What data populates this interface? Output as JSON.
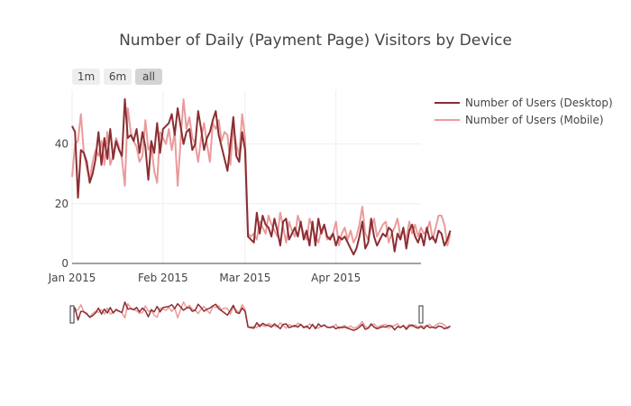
{
  "chart_data": {
    "type": "line",
    "title": "Number of Daily (Payment Page) Visitors by Device",
    "xlabel": "",
    "ylabel": "",
    "x_start": "2015-01-01",
    "x_end": "2015-04-30",
    "x_ticks": [
      {
        "date": "2015-01-01",
        "label": "Jan 2015"
      },
      {
        "date": "2015-02-01",
        "label": "Feb 2015"
      },
      {
        "date": "2015-03-01",
        "label": "Mar 2015"
      },
      {
        "date": "2015-04-01",
        "label": "Apr 2015"
      }
    ],
    "ylim": [
      0,
      58
    ],
    "y_ticks": [
      0,
      20,
      40
    ],
    "grid": true,
    "legend": "top-right",
    "range_buttons": [
      {
        "label": "1m",
        "active": false
      },
      {
        "label": "6m",
        "active": false
      },
      {
        "label": "all",
        "active": true
      }
    ],
    "range_slider": true,
    "series": [
      {
        "name": "Number of Users (Desktop)",
        "color": "#8b2e32",
        "values": [
          46,
          44,
          22,
          38,
          37,
          34,
          27,
          30,
          35,
          44,
          33,
          42,
          35,
          45,
          35,
          41,
          38,
          36,
          55,
          42,
          43,
          41,
          45,
          37,
          44,
          39,
          28,
          41,
          37,
          47,
          37,
          45,
          46,
          47,
          50,
          43,
          52,
          46,
          40,
          44,
          45,
          38,
          40,
          51,
          45,
          38,
          42,
          44,
          48,
          51,
          43,
          39,
          35,
          31,
          40,
          49,
          36,
          34,
          44,
          38,
          9,
          8,
          7,
          17,
          10,
          16,
          13,
          12,
          9,
          15,
          11,
          6,
          14,
          15,
          8,
          10,
          12,
          9,
          14,
          8,
          11,
          6,
          14,
          6,
          15,
          10,
          13,
          9,
          8,
          10,
          6,
          9,
          8,
          9,
          7,
          5,
          3,
          5,
          9,
          14,
          5,
          7,
          15,
          9,
          6,
          8,
          10,
          9,
          12,
          11,
          4,
          10,
          8,
          12,
          5,
          11,
          13,
          9,
          7,
          10,
          6,
          12,
          8,
          9,
          7,
          11,
          10,
          6,
          8,
          11
        ]
      },
      {
        "name": "Number of Users (Mobile)",
        "color": "#ea9b9b",
        "values": [
          29,
          40,
          41,
          50,
          37,
          32,
          28,
          34,
          38,
          36,
          41,
          33,
          44,
          33,
          36,
          42,
          39,
          35,
          26,
          52,
          44,
          41,
          39,
          34,
          36,
          48,
          38,
          40,
          31,
          27,
          44,
          42,
          40,
          45,
          38,
          44,
          26,
          41,
          55,
          45,
          49,
          42,
          40,
          34,
          42,
          47,
          40,
          34,
          47,
          45,
          48,
          41,
          44,
          43,
          33,
          46,
          40,
          36,
          50,
          42,
          10,
          9,
          10,
          8,
          14,
          12,
          10,
          16,
          13,
          11,
          9,
          17,
          12,
          7,
          14,
          11,
          9,
          16,
          13,
          10,
          8,
          15,
          12,
          9,
          7,
          11,
          13,
          8,
          9,
          10,
          14,
          6,
          10,
          12,
          8,
          11,
          7,
          9,
          13,
          19,
          10,
          8,
          12,
          15,
          9,
          11,
          13,
          14,
          7,
          10,
          12,
          15,
          9,
          11,
          8,
          14,
          10,
          13,
          9,
          12,
          10,
          11,
          14,
          8,
          12,
          16,
          16,
          13,
          6,
          10
        ]
      }
    ]
  }
}
